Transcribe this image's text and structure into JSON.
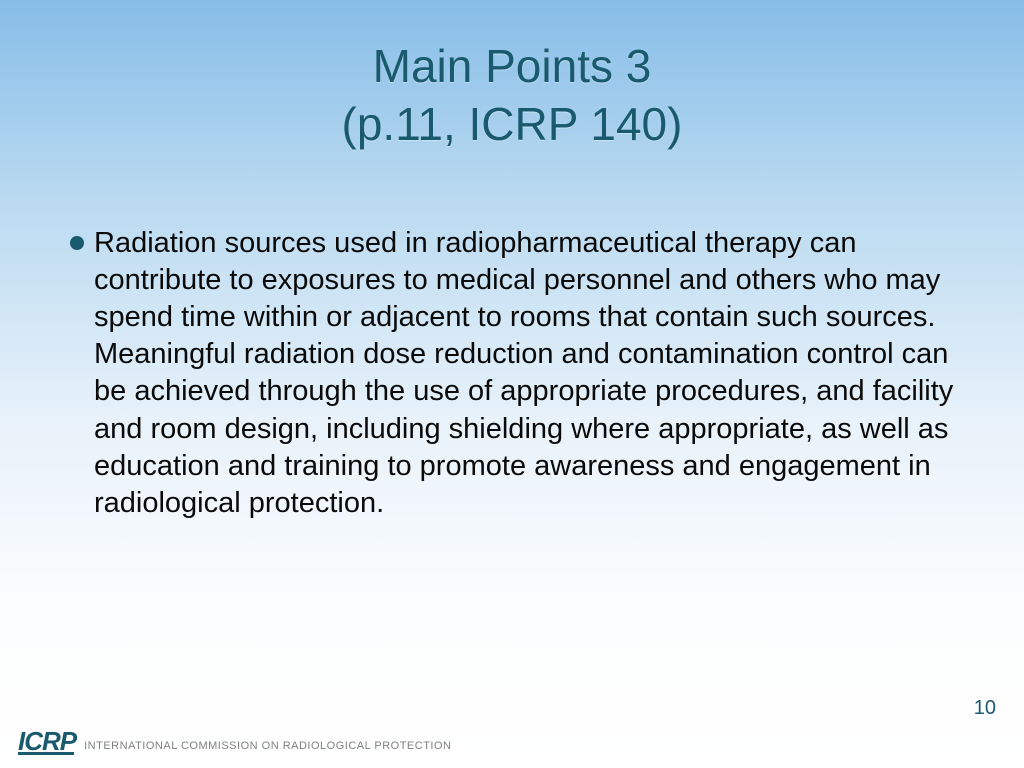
{
  "title": {
    "line1": "Main Points 3",
    "line2": "(p.11, ICRP 140)",
    "color": "#1a5a6e",
    "fontsize": 46
  },
  "body": {
    "bullets": [
      {
        "text": "Radiation sources used in radiopharmaceutical therapy can contribute to exposures to medical personnel and others who may spend time within or adjacent to rooms that contain such sources. Meaningful radiation dose reduction and contamination control can be achieved through the use of appropriate procedures, and facility and room design, including shielding where appropriate, as well as education and training to promote awareness and engagement in radiological protection."
      }
    ],
    "bullet_color": "#1a5a6e",
    "text_color": "#0a0a0a",
    "fontsize": 29
  },
  "footer": {
    "logo_text": "ICRP",
    "org_name": "INTERNATIONAL COMMISSION ON RADIOLOGICAL PROTECTION",
    "logo_color": "#1a5a6e",
    "org_name_color": "#808080"
  },
  "page_number": "10",
  "background": {
    "gradient_top": "#87bde8",
    "gradient_mid": "#e8f2fa",
    "gradient_bottom": "#ffffff"
  }
}
